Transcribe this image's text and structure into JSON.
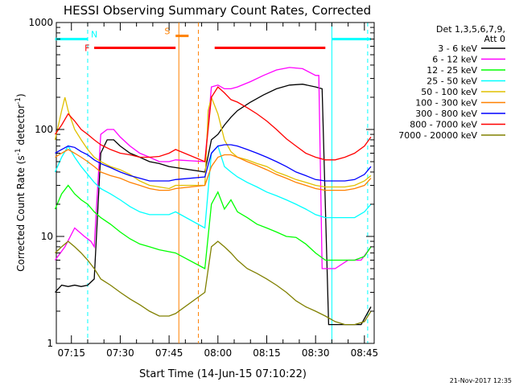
{
  "chart_data": {
    "type": "line",
    "title": "HESSI Observing Summary Count Rates, Corrected",
    "xlabel": "Start Time (14-Jun-15 07:10:22)",
    "ylabel": "Corrected Count Rate (s",
    "ylabel_sup": "-1",
    "ylabel_tail": " detector",
    "ylabel_close": ")",
    "y_scale": "log",
    "ylim": [
      1,
      1000
    ],
    "xlim": [
      "07:10:22",
      "08:48:00"
    ],
    "x_ticks": [
      "07:15",
      "07:30",
      "07:45",
      "08:00",
      "08:15",
      "08:30",
      "08:45"
    ],
    "y_ticks": [
      "1",
      "10",
      "100",
      "1000"
    ],
    "footer": "21-Nov-2017 12:35",
    "legend_header": [
      "Det 1,3,5,6,7,9,",
      "Att 0"
    ],
    "legend_placement": "right",
    "series": [
      {
        "name": "3 - 6 keV",
        "color": "#000000",
        "x": [
          "07:10",
          "07:12",
          "07:14",
          "07:16",
          "07:18",
          "07:20",
          "07:22",
          "07:24",
          "07:26",
          "07:28",
          "07:30",
          "07:33",
          "07:36",
          "07:39",
          "07:42",
          "07:45",
          "07:47",
          "07:56",
          "07:58",
          "08:00",
          "08:02",
          "08:04",
          "08:06",
          "08:10",
          "08:14",
          "08:18",
          "08:22",
          "08:26",
          "08:30",
          "08:32",
          "08:34",
          "08:36",
          "08:40",
          "08:44",
          "08:47"
        ],
        "values": [
          3,
          3.5,
          3.4,
          3.5,
          3.4,
          3.5,
          4,
          60,
          80,
          80,
          70,
          60,
          55,
          50,
          48,
          45,
          44,
          40,
          80,
          90,
          110,
          130,
          150,
          180,
          210,
          240,
          260,
          265,
          250,
          240,
          1.5,
          1.5,
          1.5,
          1.5,
          2.2
        ]
      },
      {
        "name": "6 - 12 keV",
        "color": "#ff00ff",
        "x": [
          "07:10",
          "07:13",
          "07:16",
          "07:19",
          "07:21",
          "07:22",
          "07:24",
          "07:26",
          "07:28",
          "07:30",
          "07:33",
          "07:36",
          "07:39",
          "07:42",
          "07:45",
          "07:47",
          "07:56",
          "07:58",
          "08:00",
          "08:02",
          "08:04",
          "08:06",
          "08:10",
          "08:14",
          "08:18",
          "08:22",
          "08:26",
          "08:30",
          "08:31",
          "08:32",
          "08:34",
          "08:36",
          "08:40",
          "08:44",
          "08:47"
        ],
        "values": [
          6,
          8,
          12,
          10,
          9,
          8,
          90,
          100,
          100,
          85,
          70,
          60,
          55,
          50,
          50,
          52,
          50,
          250,
          260,
          240,
          240,
          250,
          280,
          320,
          360,
          380,
          370,
          320,
          320,
          5,
          5,
          5,
          6,
          6,
          8
        ]
      },
      {
        "name": "12 - 25 keV",
        "color": "#00ff00",
        "x": [
          "07:10",
          "07:12",
          "07:14",
          "07:16",
          "07:18",
          "07:20",
          "07:22",
          "07:24",
          "07:27",
          "07:30",
          "07:33",
          "07:36",
          "07:39",
          "07:42",
          "07:45",
          "07:47",
          "07:56",
          "07:58",
          "08:00",
          "08:02",
          "08:04",
          "08:06",
          "08:09",
          "08:12",
          "08:15",
          "08:18",
          "08:21",
          "08:24",
          "08:27",
          "08:30",
          "08:33",
          "08:36",
          "08:39",
          "08:42",
          "08:45",
          "08:47"
        ],
        "values": [
          18,
          25,
          30,
          25,
          22,
          20,
          17,
          15,
          13,
          11,
          9.5,
          8.5,
          8,
          7.5,
          7.2,
          7,
          5,
          20,
          26,
          18,
          22,
          17,
          15,
          13,
          12,
          11,
          10,
          9.8,
          8.5,
          7,
          6,
          6,
          6,
          6,
          6.5,
          8
        ]
      },
      {
        "name": "25 - 50 keV",
        "color": "#00ffff",
        "x": [
          "07:10",
          "07:12",
          "07:14",
          "07:16",
          "07:18",
          "07:20",
          "07:22",
          "07:24",
          "07:27",
          "07:30",
          "07:33",
          "07:36",
          "07:39",
          "07:42",
          "07:45",
          "07:47",
          "07:56",
          "07:58",
          "08:00",
          "08:02",
          "08:04",
          "08:06",
          "08:09",
          "08:12",
          "08:15",
          "08:18",
          "08:21",
          "08:24",
          "08:27",
          "08:30",
          "08:33",
          "08:36",
          "08:39",
          "08:42",
          "08:45",
          "08:47"
        ],
        "values": [
          40,
          55,
          70,
          55,
          45,
          38,
          32,
          28,
          25,
          22,
          19,
          17,
          16,
          16,
          16,
          17,
          12,
          60,
          70,
          45,
          40,
          36,
          32,
          29,
          26,
          24,
          22,
          20,
          18,
          16,
          15,
          15,
          15,
          15,
          17,
          20
        ]
      },
      {
        "name": "50 - 100 keV",
        "color": "#e0c000",
        "x": [
          "07:10",
          "07:12",
          "07:13",
          "07:14",
          "07:16",
          "07:18",
          "07:20",
          "07:22",
          "07:24",
          "07:27",
          "07:30",
          "07:33",
          "07:36",
          "07:39",
          "07:42",
          "07:45",
          "07:47",
          "07:56",
          "07:57",
          "07:58",
          "08:00",
          "08:02",
          "08:04",
          "08:06",
          "08:09",
          "08:12",
          "08:15",
          "08:18",
          "08:21",
          "08:24",
          "08:27",
          "08:30",
          "08:33",
          "08:36",
          "08:39",
          "08:42",
          "08:45",
          "08:47"
        ],
        "values": [
          80,
          150,
          200,
          150,
          100,
          80,
          65,
          55,
          50,
          45,
          42,
          38,
          33,
          30,
          29,
          28,
          30,
          30,
          150,
          200,
          140,
          80,
          62,
          55,
          52,
          48,
          45,
          40,
          37,
          34,
          32,
          30,
          29,
          29,
          29,
          30,
          33,
          37
        ]
      },
      {
        "name": "100 - 300 keV",
        "color": "#ff8000",
        "x": [
          "07:10",
          "07:12",
          "07:14",
          "07:16",
          "07:18",
          "07:20",
          "07:22",
          "07:24",
          "07:27",
          "07:30",
          "07:33",
          "07:36",
          "07:39",
          "07:42",
          "07:45",
          "07:47",
          "07:56",
          "07:58",
          "08:00",
          "08:02",
          "08:04",
          "08:06",
          "08:09",
          "08:12",
          "08:15",
          "08:18",
          "08:21",
          "08:24",
          "08:27",
          "08:30",
          "08:33",
          "08:36",
          "08:39",
          "08:42",
          "08:45",
          "08:47"
        ],
        "values": [
          55,
          60,
          65,
          60,
          55,
          50,
          45,
          40,
          37,
          35,
          32,
          30,
          28,
          27,
          27,
          28,
          30,
          45,
          55,
          58,
          58,
          55,
          50,
          46,
          42,
          38,
          35,
          32,
          30,
          28,
          27,
          27,
          27,
          28,
          30,
          35
        ]
      },
      {
        "name": "300 - 800 keV",
        "color": "#0000ff",
        "x": [
          "07:10",
          "07:12",
          "07:14",
          "07:16",
          "07:18",
          "07:20",
          "07:22",
          "07:24",
          "07:27",
          "07:30",
          "07:33",
          "07:36",
          "07:39",
          "07:42",
          "07:45",
          "07:47",
          "07:56",
          "07:58",
          "08:00",
          "08:02",
          "08:04",
          "08:06",
          "08:09",
          "08:12",
          "08:15",
          "08:18",
          "08:21",
          "08:24",
          "08:27",
          "08:30",
          "08:33",
          "08:36",
          "08:39",
          "08:42",
          "08:45",
          "08:47"
        ],
        "values": [
          60,
          65,
          70,
          68,
          62,
          58,
          52,
          48,
          44,
          40,
          37,
          35,
          33,
          33,
          33,
          34,
          36,
          60,
          70,
          72,
          72,
          70,
          65,
          60,
          55,
          50,
          45,
          40,
          37,
          34,
          33,
          33,
          33,
          34,
          38,
          45
        ]
      },
      {
        "name": "800 - 7000 keV",
        "color": "#ff0000",
        "x": [
          "07:10",
          "07:12",
          "07:14",
          "07:16",
          "07:18",
          "07:20",
          "07:22",
          "07:24",
          "07:27",
          "07:30",
          "07:33",
          "07:36",
          "07:39",
          "07:42",
          "07:45",
          "07:47",
          "07:56",
          "07:58",
          "08:00",
          "08:02",
          "08:04",
          "08:06",
          "08:09",
          "08:12",
          "08:15",
          "08:18",
          "08:21",
          "08:24",
          "08:27",
          "08:30",
          "08:33",
          "08:36",
          "08:39",
          "08:42",
          "08:45",
          "08:47"
        ],
        "values": [
          90,
          110,
          140,
          120,
          100,
          90,
          80,
          72,
          65,
          60,
          58,
          55,
          55,
          56,
          60,
          65,
          50,
          200,
          250,
          220,
          190,
          180,
          160,
          140,
          120,
          100,
          82,
          70,
          60,
          55,
          52,
          52,
          55,
          60,
          70,
          85
        ]
      },
      {
        "name": "7000 - 20000 keV",
        "color": "#808000",
        "x": [
          "07:10",
          "07:12",
          "07:14",
          "07:16",
          "07:18",
          "07:20",
          "07:22",
          "07:24",
          "07:27",
          "07:30",
          "07:33",
          "07:36",
          "07:39",
          "07:42",
          "07:45",
          "07:47",
          "07:56",
          "07:58",
          "08:00",
          "08:02",
          "08:04",
          "08:06",
          "08:09",
          "08:12",
          "08:15",
          "08:18",
          "08:21",
          "08:24",
          "08:27",
          "08:30",
          "08:33",
          "08:36",
          "08:39",
          "08:42",
          "08:45",
          "08:47"
        ],
        "values": [
          7,
          8,
          9,
          8,
          7,
          6,
          5,
          4,
          3.5,
          3,
          2.6,
          2.3,
          2,
          1.8,
          1.8,
          1.9,
          3,
          8,
          9,
          8,
          7,
          6,
          5,
          4.5,
          4,
          3.5,
          3,
          2.5,
          2.2,
          2,
          1.8,
          1.6,
          1.5,
          1.5,
          1.6,
          2
        ]
      }
    ],
    "annotations": {
      "N": {
        "label": "N",
        "color": "#00ffff",
        "x": [
          "07:10",
          "07:20"
        ],
        "y": 700,
        "dashed_line": "07:20"
      },
      "F": {
        "label": "F",
        "color": "#ff0000",
        "segments": [
          [
            "07:22",
            "07:47"
          ],
          [
            "07:59",
            "08:33"
          ]
        ],
        "y": 580
      },
      "S": {
        "label": "S",
        "color": "#ff8000",
        "x": [
          "07:47",
          "07:51"
        ],
        "y": 750,
        "solid_line": "07:48",
        "dashed_line": "07:54"
      },
      "N2": {
        "color": "#00ffff",
        "x": [
          "08:35",
          "08:47"
        ],
        "y": 700,
        "solid_line": "08:35",
        "dashed_line": "08:46"
      }
    }
  }
}
